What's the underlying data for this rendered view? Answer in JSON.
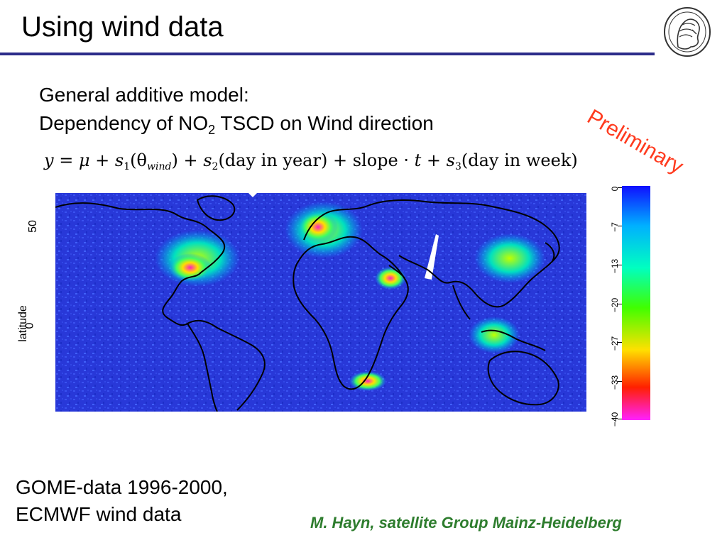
{
  "slide": {
    "title": "Using wind data",
    "preliminary": "Preliminary",
    "intro_line1": "General additive model:",
    "intro_line2_prefix": "Dependency of NO",
    "intro_line2_sub": "2",
    "intro_line2_suffix": " TSCD on Wind direction",
    "footer_line1": "GOME-data 1996-2000,",
    "footer_line2": "ECMWF wind data",
    "credit": "M. Hayn, satellite Group Mainz-Heidelberg"
  },
  "formula": {
    "y": "y",
    "eq": " = ",
    "mu": "μ",
    "plus": " + ",
    "s": "s",
    "sub1": "1",
    "arg1_open": "(θ",
    "arg1_sub": "wind",
    "arg1_close": ")",
    "sub2": "2",
    "arg2": "(day  in  year)",
    "slope": "slope · ",
    "t": "t",
    "sub3": "3",
    "arg3": "(day  in  week)"
  },
  "chart_data": {
    "type": "heatmap",
    "title": "",
    "ylabel": "latitude",
    "ytick_labels": [
      "50",
      "0"
    ],
    "colorbar": {
      "tick_labels": [
        "0",
        "−7",
        "−13",
        "−20",
        "−27",
        "−33",
        "−40"
      ],
      "range": [
        -40,
        0
      ],
      "colors": [
        "#1010ff",
        "#00b0ff",
        "#00ffc0",
        "#40ff00",
        "#ffe000",
        "#ff2000",
        "#ff20ff"
      ]
    },
    "hotspots": [
      "Eastern USA",
      "Western Europe",
      "Persian Gulf",
      "East Asia",
      "South Africa"
    ]
  },
  "colors": {
    "title_rule": "#2c2c8a",
    "preliminary": "#ff3b1f",
    "credit": "#2e7d2e",
    "map_background": "#2a3ad8"
  }
}
